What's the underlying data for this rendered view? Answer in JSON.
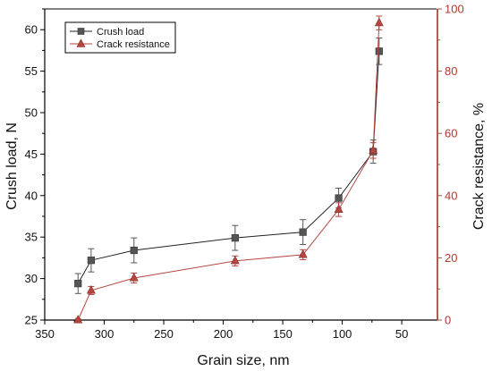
{
  "chart_data": {
    "type": "line",
    "xlabel": "Grain size, nm",
    "ylabel_left": "Crush load, N",
    "ylabel_right": "Crack resistance, %",
    "x_axis": {
      "range": [
        350,
        20
      ],
      "reversed": true,
      "ticks": [
        350,
        300,
        250,
        200,
        150,
        100,
        50
      ],
      "tick_labels": [
        "350",
        "300",
        "250",
        "200",
        "150",
        "100",
        "50"
      ]
    },
    "y_left_axis": {
      "range": [
        25,
        62.5
      ],
      "ticks": [
        25,
        30,
        35,
        40,
        45,
        50,
        55,
        60
      ],
      "tick_labels": [
        "25",
        "30",
        "35",
        "40",
        "45",
        "50",
        "55",
        "60"
      ]
    },
    "y_right_axis": {
      "range": [
        0,
        100
      ],
      "ticks": [
        0,
        20,
        40,
        60,
        80,
        100
      ],
      "tick_labels": [
        "0",
        "20",
        "40",
        "60",
        "80",
        "100"
      ]
    },
    "grid": false,
    "legend_position": "top-left",
    "series": [
      {
        "name": "Crush load",
        "axis": "left",
        "marker": "square",
        "color": "#555555",
        "x": [
          322,
          311,
          275,
          190,
          133,
          103,
          74,
          69
        ],
        "y": [
          29.4,
          32.2,
          33.4,
          34.9,
          35.6,
          39.7,
          45.3,
          57.4
        ],
        "err": [
          1.2,
          1.4,
          1.5,
          1.5,
          1.5,
          1.2,
          1.4,
          1.6
        ]
      },
      {
        "name": "Crack resistance",
        "axis": "right",
        "marker": "triangle",
        "color": "#b5453f",
        "x": [
          322,
          311,
          275,
          190,
          133,
          103,
          74,
          69
        ],
        "y": [
          0,
          9.5,
          13.5,
          19,
          21,
          35.5,
          54.5,
          95.5
        ],
        "err": [
          0.5,
          1.3,
          1.6,
          1.6,
          1.6,
          2.2,
          2.5,
          2.2
        ]
      }
    ],
    "colors": {
      "left_axis": "#000000",
      "right_axis": "#b5453f",
      "crush_marker": "#555555",
      "crack_marker": "#b5453f",
      "crack_line": "#b5453f"
    }
  }
}
